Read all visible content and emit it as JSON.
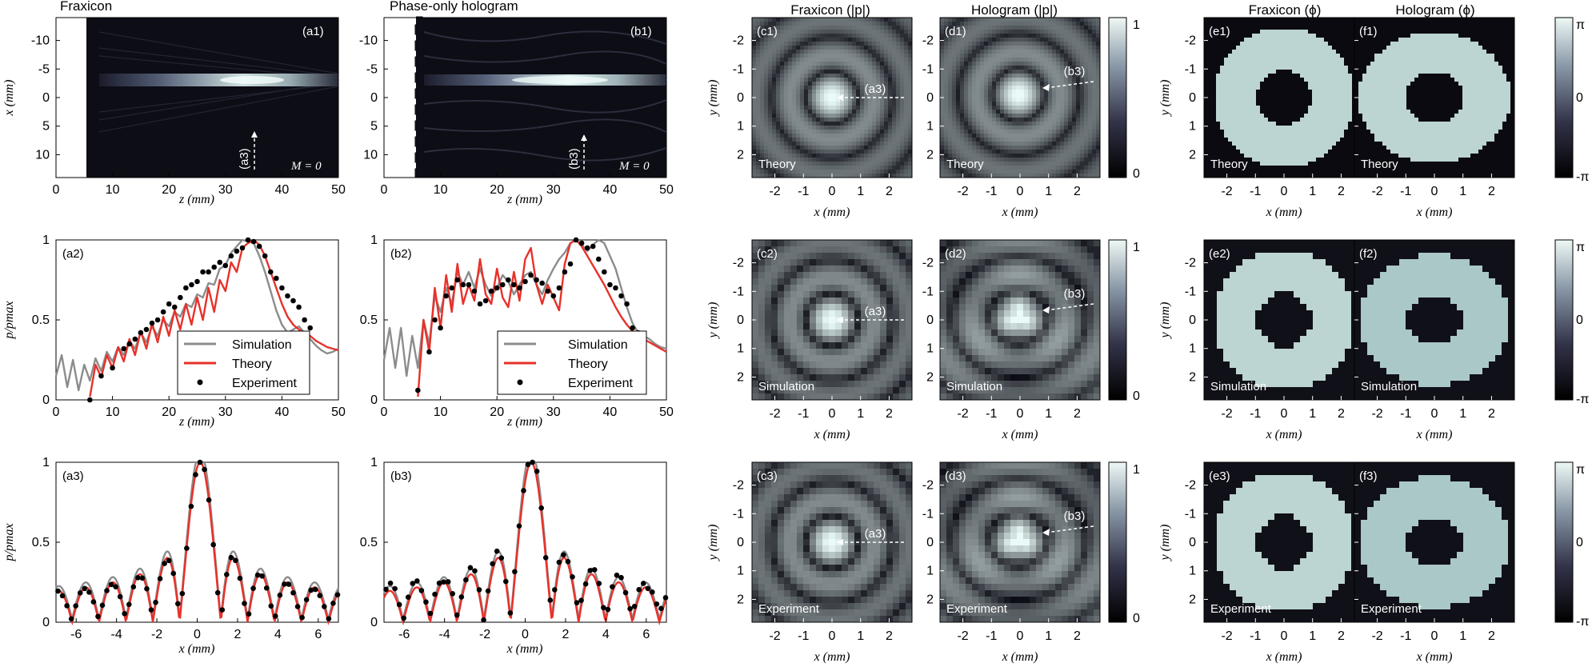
{
  "column_titles": {
    "a": "Fraxicon",
    "b": "Phase-only hologram",
    "c": "Fraxicon (|p|)",
    "d": "Hologram (|p|)",
    "e": "Fraxicon (ϕ)",
    "f": "Hologram (ϕ)"
  },
  "panel_labels": {
    "a1": "(a1)",
    "b1": "(b1)",
    "a2": "(a2)",
    "b2": "(b2)",
    "a3": "(a3)",
    "b3": "(b3)",
    "c1": "(c1)",
    "c2": "(c2)",
    "c3": "(c3)",
    "d1": "(d1)",
    "d2": "(d2)",
    "d3": "(d3)",
    "e1": "(e1)",
    "e2": "(e2)",
    "e3": "(e3)",
    "f1": "(f1)",
    "f2": "(f2)",
    "f3": "(f3)"
  },
  "row_labels": [
    "Theory",
    "Simulation",
    "Experiment"
  ],
  "axis_labels": {
    "z": "z (mm)",
    "x": "x (mm)",
    "y": "y (mm)",
    "p_norm": "p/pmax"
  },
  "annotations": {
    "mode": "M = 0",
    "arrow_a": "(a3)",
    "arrow_b": "(b3)"
  },
  "legend": [
    "Simulation",
    "Theory",
    "Experiment"
  ],
  "colorbars": {
    "amplitude": {
      "top": "1",
      "bottom": "0"
    },
    "phase": {
      "top": "π",
      "mid": "0",
      "bottom": "-π"
    }
  },
  "colors": {
    "simulation": "#8c8c8c",
    "theory": "#e8312a",
    "experiment": "#000000"
  },
  "chart_data": [
    {
      "id": "a1",
      "type": "heatmap",
      "xlabel": "z (mm)",
      "ylabel": "x (mm)",
      "xlim": [
        0,
        50
      ],
      "ylim": [
        -14,
        14
      ],
      "xticks": [
        "0",
        "10",
        "20",
        "30",
        "40",
        "50"
      ],
      "yticks": [
        "-10",
        "-5",
        "0",
        "5",
        "10"
      ]
    },
    {
      "id": "b1",
      "type": "heatmap",
      "xlabel": "z (mm)",
      "ylabel": "x (mm)",
      "xlim": [
        0,
        50
      ],
      "ylim": [
        -14,
        14
      ],
      "xticks": [
        "0",
        "10",
        "20",
        "30",
        "40",
        "50"
      ],
      "yticks": [
        "-10",
        "-5",
        "0",
        "5",
        "10"
      ]
    },
    {
      "id": "a2",
      "type": "line",
      "xlabel": "z (mm)",
      "ylabel": "p/pmax",
      "xlim": [
        0,
        50
      ],
      "ylim": [
        0,
        1
      ],
      "xticks": [
        "0",
        "10",
        "20",
        "30",
        "40",
        "50"
      ],
      "yticks": [
        "0",
        "0.5",
        "1"
      ],
      "series": [
        {
          "name": "Simulation",
          "x": [
            0,
            1,
            2,
            3,
            4,
            5,
            6,
            7,
            8,
            9,
            10,
            11,
            12,
            13,
            14,
            15,
            16,
            17,
            18,
            19,
            20,
            21,
            22,
            23,
            24,
            25,
            26,
            27,
            28,
            29,
            30,
            31,
            32,
            33,
            34,
            35,
            36,
            37,
            38,
            39,
            40,
            41,
            42,
            43,
            44,
            45,
            46,
            47,
            48,
            49,
            50
          ],
          "y": [
            0.15,
            0.28,
            0.08,
            0.25,
            0.06,
            0.22,
            0.12,
            0.26,
            0.18,
            0.3,
            0.24,
            0.33,
            0.28,
            0.37,
            0.32,
            0.42,
            0.36,
            0.46,
            0.4,
            0.5,
            0.46,
            0.55,
            0.52,
            0.6,
            0.58,
            0.66,
            0.64,
            0.73,
            0.72,
            0.82,
            0.84,
            0.92,
            0.96,
            1.0,
            0.99,
            0.98,
            0.9,
            0.8,
            0.68,
            0.56,
            0.47,
            0.42,
            0.44,
            0.46,
            0.42,
            0.38,
            0.34,
            0.31,
            0.29,
            0.3,
            0.32
          ]
        },
        {
          "name": "Theory",
          "x": [
            6,
            7,
            8,
            9,
            10,
            11,
            12,
            13,
            14,
            15,
            16,
            17,
            18,
            19,
            20,
            21,
            22,
            23,
            24,
            25,
            26,
            27,
            28,
            29,
            30,
            31,
            32,
            33,
            34,
            35,
            36,
            37,
            38,
            39,
            40,
            41,
            42,
            43,
            44,
            45,
            46,
            47,
            48,
            49,
            50
          ],
          "y": [
            0.02,
            0.22,
            0.14,
            0.28,
            0.2,
            0.33,
            0.24,
            0.38,
            0.28,
            0.43,
            0.32,
            0.48,
            0.36,
            0.52,
            0.4,
            0.56,
            0.44,
            0.6,
            0.47,
            0.64,
            0.5,
            0.7,
            0.55,
            0.75,
            0.68,
            0.86,
            0.8,
            0.95,
            0.98,
            1.0,
            0.97,
            0.9,
            0.8,
            0.7,
            0.6,
            0.52,
            0.47,
            0.44,
            0.42,
            0.4,
            0.37,
            0.35,
            0.33,
            0.32,
            0.31
          ]
        },
        {
          "name": "Experiment",
          "x": [
            6,
            8,
            10,
            12,
            13,
            14,
            15,
            16,
            17,
            18,
            19,
            20,
            21,
            22,
            23,
            24,
            25,
            26,
            27,
            28,
            29,
            30,
            31,
            32,
            33,
            34,
            35,
            36,
            37,
            38,
            39,
            40,
            41,
            42,
            43,
            44,
            45
          ],
          "y": [
            0,
            0.15,
            0.2,
            0.32,
            0.35,
            0.38,
            0.42,
            0.44,
            0.48,
            0.5,
            0.55,
            0.6,
            0.58,
            0.64,
            0.7,
            0.72,
            0.74,
            0.8,
            0.8,
            0.83,
            0.86,
            0.84,
            0.9,
            0.93,
            0.95,
            1.0,
            0.99,
            0.96,
            0.9,
            0.8,
            0.76,
            0.7,
            0.65,
            0.62,
            0.58,
            0.5,
            0.45
          ]
        }
      ]
    },
    {
      "id": "b2",
      "type": "line",
      "xlabel": "z (mm)",
      "ylabel": "p/pmax",
      "xlim": [
        0,
        50
      ],
      "ylim": [
        0,
        1
      ],
      "xticks": [
        "0",
        "10",
        "20",
        "30",
        "40",
        "50"
      ],
      "yticks": [
        "0",
        "0.5",
        "1"
      ],
      "series": [
        {
          "name": "Simulation",
          "x": [
            0,
            1,
            2,
            3,
            4,
            5,
            6,
            7,
            8,
            9,
            10,
            11,
            12,
            13,
            14,
            15,
            16,
            17,
            18,
            19,
            20,
            21,
            22,
            23,
            24,
            25,
            26,
            27,
            28,
            29,
            30,
            31,
            32,
            33,
            34,
            35,
            36,
            37,
            38,
            39,
            40,
            41,
            42,
            43,
            44,
            45,
            46,
            47,
            48,
            49,
            50
          ],
          "y": [
            0.25,
            0.45,
            0.2,
            0.45,
            0.15,
            0.4,
            0.2,
            0.5,
            0.35,
            0.65,
            0.55,
            0.7,
            0.6,
            0.8,
            0.72,
            0.8,
            0.7,
            0.82,
            0.72,
            0.65,
            0.7,
            0.78,
            0.74,
            0.66,
            0.72,
            0.78,
            0.8,
            0.72,
            0.66,
            0.75,
            0.82,
            0.88,
            0.92,
            0.98,
            1.0,
            0.97,
            0.93,
            0.97,
            1.0,
            0.98,
            0.9,
            0.82,
            0.7,
            0.58,
            0.48,
            0.42,
            0.4,
            0.38,
            0.35,
            0.33,
            0.32
          ]
        },
        {
          "name": "Theory",
          "x": [
            6,
            7,
            8,
            9,
            10,
            11,
            12,
            13,
            14,
            15,
            16,
            17,
            18,
            19,
            20,
            21,
            22,
            23,
            24,
            25,
            26,
            27,
            28,
            29,
            30,
            31,
            32,
            33,
            34,
            35,
            36,
            37,
            38,
            39,
            40,
            41,
            42,
            43,
            44,
            45,
            46,
            47,
            48,
            49,
            50
          ],
          "y": [
            0.02,
            0.5,
            0.3,
            0.7,
            0.45,
            0.78,
            0.55,
            0.85,
            0.6,
            0.72,
            0.62,
            0.88,
            0.66,
            0.6,
            0.82,
            0.64,
            0.58,
            0.8,
            0.62,
            0.88,
            0.95,
            0.72,
            0.6,
            0.72,
            0.64,
            0.56,
            0.85,
            0.98,
            1.0,
            0.96,
            0.9,
            0.84,
            0.78,
            0.72,
            0.65,
            0.58,
            0.52,
            0.47,
            0.43,
            0.4,
            0.38,
            0.36,
            0.34,
            0.32,
            0.3
          ]
        },
        {
          "name": "Experiment",
          "x": [
            6,
            8,
            9,
            10,
            11,
            12,
            13,
            14,
            15,
            16,
            17,
            18,
            19,
            20,
            21,
            22,
            23,
            24,
            25,
            26,
            27,
            28,
            29,
            30,
            31,
            32,
            33,
            34,
            35,
            36,
            37,
            38,
            39,
            40,
            41,
            42,
            43,
            44,
            45
          ],
          "y": [
            0.06,
            0.3,
            0.5,
            0.45,
            0.65,
            0.7,
            0.75,
            0.72,
            0.72,
            0.68,
            0.6,
            0.62,
            0.68,
            0.7,
            0.72,
            0.75,
            0.72,
            0.7,
            0.74,
            0.78,
            0.75,
            0.73,
            0.68,
            0.65,
            0.7,
            0.8,
            0.85,
            1.0,
            0.98,
            0.95,
            0.96,
            0.88,
            0.8,
            0.72,
            0.7,
            0.65,
            0.6,
            0.45,
            0.42
          ]
        }
      ]
    },
    {
      "id": "a3",
      "type": "line",
      "xlabel": "x (mm)",
      "ylabel": "p/pmax",
      "xlim": [
        -7,
        7
      ],
      "ylim": [
        0,
        1
      ],
      "xticks": [
        "-6",
        "-4",
        "-2",
        "0",
        "2",
        "4",
        "6"
      ],
      "yticks": [
        "0",
        "0.5",
        "1"
      ]
    },
    {
      "id": "b3",
      "type": "line",
      "xlabel": "x (mm)",
      "ylabel": "p/pmax",
      "xlim": [
        -7,
        7
      ],
      "ylim": [
        0,
        1
      ],
      "xticks": [
        "-6",
        "-4",
        "-2",
        "0",
        "2",
        "4",
        "6"
      ],
      "yticks": [
        "0",
        "0.5",
        "1"
      ]
    },
    {
      "id": "maps",
      "type": "heatmap",
      "xlabel": "x (mm)",
      "ylabel": "y (mm)",
      "xlim": [
        -2.8,
        2.8
      ],
      "ylim": [
        -2.8,
        2.8
      ],
      "xticks": [
        "-2",
        "-1",
        "0",
        "1",
        "2"
      ],
      "yticks": [
        "-2",
        "-1",
        "0",
        "1",
        "2"
      ]
    }
  ]
}
